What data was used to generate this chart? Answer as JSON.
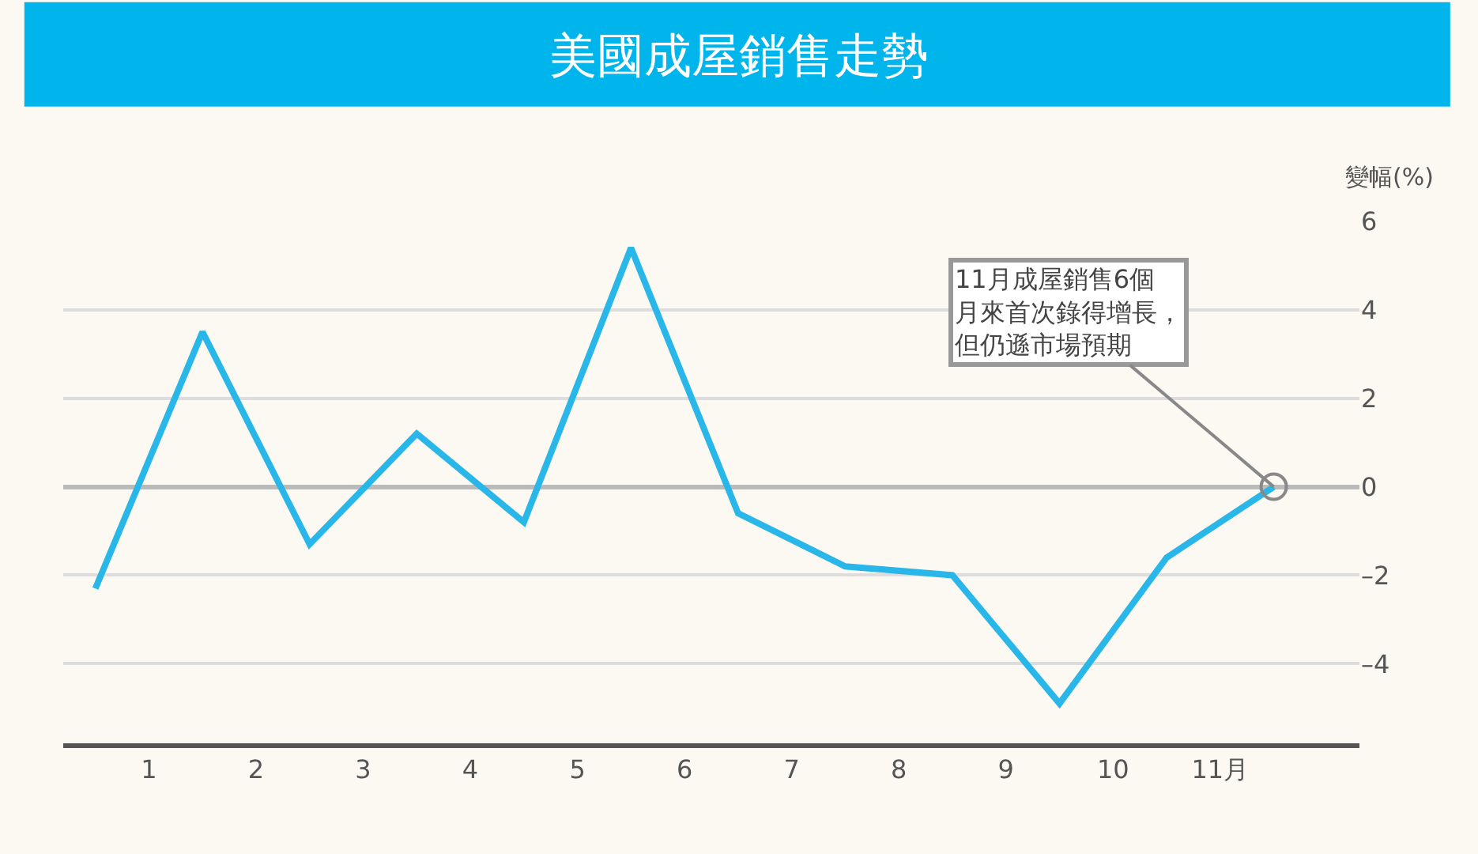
{
  "chart_data": {
    "type": "line",
    "title": "美國成屋銷售走勢",
    "ylabel": "變幅(%)",
    "x": [
      0,
      1,
      2,
      3,
      4,
      5,
      6,
      7,
      8,
      9,
      10,
      11
    ],
    "series": [
      {
        "color": "#29b6e8",
        "values": [
          -2.3,
          3.5,
          -1.3,
          1.2,
          -0.8,
          5.4,
          -0.6,
          -1.8,
          -2.0,
          -4.9,
          -1.6,
          0
        ]
      }
    ],
    "xlim": [
      -0.3,
      11.8
    ],
    "xticks": [
      {
        "value": 0.5,
        "label": "1"
      },
      {
        "value": 1.5,
        "label": "2"
      },
      {
        "value": 2.5,
        "label": "3"
      },
      {
        "value": 3.5,
        "label": "4"
      },
      {
        "value": 4.5,
        "label": "5"
      },
      {
        "value": 5.5,
        "label": "6"
      },
      {
        "value": 6.5,
        "label": "7"
      },
      {
        "value": 7.5,
        "label": "8"
      },
      {
        "value": 8.5,
        "label": "9"
      },
      {
        "value": 9.5,
        "label": "10"
      },
      {
        "value": 10.5,
        "label": "11月"
      }
    ],
    "ylim": [
      -5.8,
      6
    ],
    "yticks": [
      {
        "value": 6,
        "label": "6"
      },
      {
        "value": 4,
        "label": "4"
      },
      {
        "value": 2,
        "label": "2"
      },
      {
        "value": 0,
        "label": "0"
      },
      {
        "value": -2,
        "label": "–2"
      },
      {
        "value": -4,
        "label": "–4"
      }
    ],
    "grid": "y",
    "marker": "none",
    "line_style": "solid",
    "annotations": [
      {
        "text": "11月成屋銷售6個月來首次錄得增長，但仍遜市場預期",
        "x": 11,
        "y": 0
      }
    ]
  }
}
